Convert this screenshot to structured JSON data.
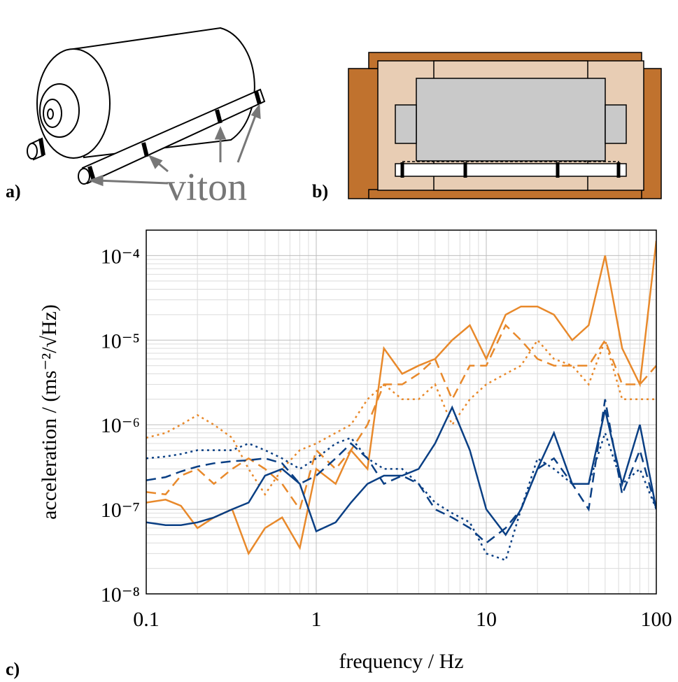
{
  "panels": {
    "a": {
      "label": "a)",
      "annotation": "viton"
    },
    "b": {
      "label": "b)"
    },
    "c": {
      "label": "c)"
    }
  },
  "chart_data": {
    "type": "line",
    "xlabel": "frequency / Hz",
    "ylabel": "acceleration / (ms⁻²/√Hz)",
    "xscale": "log",
    "yscale": "log",
    "grid": true,
    "minor_grid": true,
    "xlim": [
      0.1,
      100
    ],
    "ylim": [
      1e-08,
      0.0002
    ],
    "xticks": [
      0.1,
      1,
      10,
      100
    ],
    "yticks": [
      {
        "value": 1e-08,
        "label": "10⁻⁸"
      },
      {
        "value": 1e-07,
        "label": "10⁻⁷"
      },
      {
        "value": 1e-06,
        "label": "10⁻⁶"
      },
      {
        "value": 1e-05,
        "label": "10⁻⁵"
      },
      {
        "value": 0.0001,
        "label": "10⁻⁴"
      }
    ],
    "x": [
      0.1,
      0.13,
      0.16,
      0.2,
      0.25,
      0.32,
      0.4,
      0.5,
      0.63,
      0.8,
      1,
      1.3,
      1.6,
      2,
      2.5,
      3.2,
      4,
      5,
      6.3,
      8,
      10,
      13,
      16,
      20,
      25,
      32,
      40,
      50,
      63,
      80,
      100
    ],
    "series": [
      {
        "color": "#e8892b",
        "dash": "solid",
        "values": [
          1.2e-07,
          1.3e-07,
          1.1e-07,
          6e-08,
          8e-08,
          1e-07,
          3e-08,
          6e-08,
          8e-08,
          3.5e-08,
          3e-07,
          2e-07,
          5e-07,
          3e-07,
          8e-06,
          4e-06,
          5e-06,
          6e-06,
          1e-05,
          1.5e-05,
          6e-06,
          2e-05,
          2.5e-05,
          2.5e-05,
          2e-05,
          1e-05,
          1.5e-05,
          0.0001,
          8e-06,
          3e-06,
          0.00015
        ]
      },
      {
        "color": "#e8892b",
        "dash": "dashed",
        "values": [
          1.6e-07,
          1.5e-07,
          2.5e-07,
          3e-07,
          2e-07,
          3e-07,
          4e-07,
          3e-07,
          2e-07,
          1e-07,
          5e-07,
          3e-07,
          5e-07,
          1e-06,
          3e-06,
          3e-06,
          4e-06,
          6e-06,
          2e-06,
          5e-06,
          5e-06,
          1.5e-05,
          1e-05,
          6e-06,
          5e-06,
          5e-06,
          5e-06,
          1e-05,
          3e-06,
          3e-06,
          5e-06
        ]
      },
      {
        "color": "#e8892b",
        "dash": "dotted",
        "values": [
          7e-07,
          8e-07,
          1e-06,
          1.3e-06,
          1e-06,
          7e-07,
          3e-07,
          1.5e-07,
          3e-07,
          5e-07,
          6e-07,
          8e-07,
          1e-06,
          2e-06,
          3e-06,
          2e-06,
          2e-06,
          3e-06,
          1e-06,
          2e-06,
          3e-06,
          4e-06,
          5e-06,
          1e-05,
          6e-06,
          5e-06,
          3e-06,
          1e-05,
          2e-06,
          2e-06,
          2e-06
        ]
      },
      {
        "color": "#0a3f84",
        "dash": "solid",
        "values": [
          7e-08,
          6.5e-08,
          6.5e-08,
          7e-08,
          8e-08,
          1e-07,
          1.2e-07,
          2.5e-07,
          3e-07,
          2e-07,
          5.5e-08,
          7e-08,
          1.2e-07,
          2e-07,
          2.5e-07,
          2.5e-07,
          3e-07,
          6e-07,
          1.6e-06,
          5e-07,
          1e-07,
          5e-08,
          1e-07,
          3e-07,
          8e-07,
          2e-07,
          2e-07,
          1.5e-06,
          2e-07,
          1e-06,
          1e-07
        ]
      },
      {
        "color": "#0a3f84",
        "dash": "dashed",
        "values": [
          2.2e-07,
          2.4e-07,
          2.8e-07,
          3.2e-07,
          3.5e-07,
          3.7e-07,
          3.8e-07,
          4e-07,
          3.5e-07,
          2e-07,
          2.5e-07,
          4e-07,
          6e-07,
          4e-07,
          2e-07,
          2.5e-07,
          2e-07,
          1e-07,
          8e-08,
          6e-08,
          4e-08,
          6e-08,
          1e-07,
          3e-07,
          4e-07,
          2e-07,
          1e-07,
          2e-06,
          1.5e-07,
          5e-07,
          1e-07
        ]
      },
      {
        "color": "#0a3f84",
        "dash": "dotted",
        "values": [
          4e-07,
          4.2e-07,
          4.5e-07,
          5e-07,
          5e-07,
          5e-07,
          6e-07,
          5e-07,
          4e-07,
          3e-07,
          4e-07,
          6e-07,
          7e-07,
          4e-07,
          3e-07,
          3e-07,
          2e-07,
          1.2e-07,
          9e-08,
          7e-08,
          3e-08,
          2.5e-08,
          1e-07,
          4e-07,
          3e-07,
          2e-07,
          2e-07,
          8e-07,
          2e-07,
          3e-07,
          1e-07
        ]
      }
    ]
  }
}
